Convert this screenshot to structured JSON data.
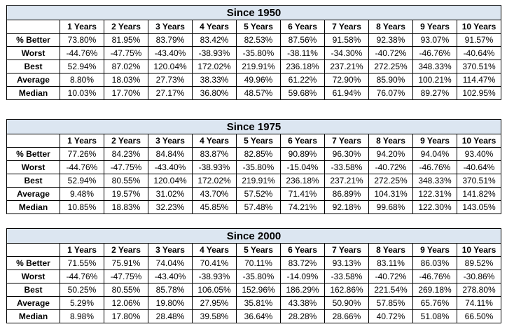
{
  "column_headers": [
    "1 Years",
    "2 Years",
    "3 Years",
    "4 Years",
    "5 Years",
    "6 Years",
    "7 Years",
    "8 Years",
    "9 Years",
    "10 Years"
  ],
  "row_labels": [
    "% Better",
    "Worst",
    "Best",
    "Average",
    "Median"
  ],
  "tables": [
    {
      "title": "Since 1950",
      "rows": [
        [
          "73.80%",
          "81.95%",
          "83.79%",
          "83.42%",
          "82.53%",
          "87.56%",
          "91.58%",
          "92.38%",
          "93.07%",
          "91.57%"
        ],
        [
          "-44.76%",
          "-47.75%",
          "-43.40%",
          "-38.93%",
          "-35.80%",
          "-38.11%",
          "-34.30%",
          "-40.72%",
          "-46.76%",
          "-40.64%"
        ],
        [
          "52.94%",
          "87.02%",
          "120.04%",
          "172.02%",
          "219.91%",
          "236.18%",
          "237.21%",
          "272.25%",
          "348.33%",
          "370.51%"
        ],
        [
          "8.80%",
          "18.03%",
          "27.73%",
          "38.33%",
          "49.96%",
          "61.22%",
          "72.90%",
          "85.90%",
          "100.21%",
          "114.47%"
        ],
        [
          "10.03%",
          "17.70%",
          "27.17%",
          "36.80%",
          "48.57%",
          "59.68%",
          "61.94%",
          "76.07%",
          "89.27%",
          "102.95%"
        ]
      ]
    },
    {
      "title": "Since 1975",
      "rows": [
        [
          "77.26%",
          "84.23%",
          "84.84%",
          "83.87%",
          "82.85%",
          "90.89%",
          "96.30%",
          "94.20%",
          "94.04%",
          "93.40%"
        ],
        [
          "-44.76%",
          "-47.75%",
          "-43.40%",
          "-38.93%",
          "-35.80%",
          "-15.04%",
          "-33.58%",
          "-40.72%",
          "-46.76%",
          "-40.64%"
        ],
        [
          "52.94%",
          "80.55%",
          "120.04%",
          "172.02%",
          "219.91%",
          "236.18%",
          "237.21%",
          "272.25%",
          "348.33%",
          "370.51%"
        ],
        [
          "9.48%",
          "19.57%",
          "31.02%",
          "43.70%",
          "57.52%",
          "71.41%",
          "86.89%",
          "104.31%",
          "122.31%",
          "141.82%"
        ],
        [
          "10.85%",
          "18.83%",
          "32.23%",
          "45.85%",
          "57.48%",
          "74.21%",
          "92.18%",
          "99.68%",
          "122.30%",
          "143.05%"
        ]
      ]
    },
    {
      "title": "Since 2000",
      "rows": [
        [
          "71.55%",
          "75.91%",
          "74.04%",
          "70.41%",
          "70.11%",
          "83.72%",
          "93.13%",
          "83.11%",
          "86.03%",
          "89.52%"
        ],
        [
          "-44.76%",
          "-47.75%",
          "-43.40%",
          "-38.93%",
          "-35.80%",
          "-14.09%",
          "-33.58%",
          "-40.72%",
          "-46.76%",
          "-30.86%"
        ],
        [
          "50.25%",
          "80.55%",
          "85.78%",
          "106.05%",
          "152.96%",
          "186.29%",
          "162.86%",
          "221.54%",
          "269.18%",
          "278.80%"
        ],
        [
          "5.29%",
          "12.06%",
          "19.80%",
          "27.95%",
          "35.81%",
          "43.38%",
          "50.90%",
          "57.85%",
          "65.76%",
          "74.11%"
        ],
        [
          "8.98%",
          "17.80%",
          "28.48%",
          "39.58%",
          "36.64%",
          "28.28%",
          "28.66%",
          "40.72%",
          "51.08%",
          "66.50%"
        ]
      ]
    }
  ]
}
